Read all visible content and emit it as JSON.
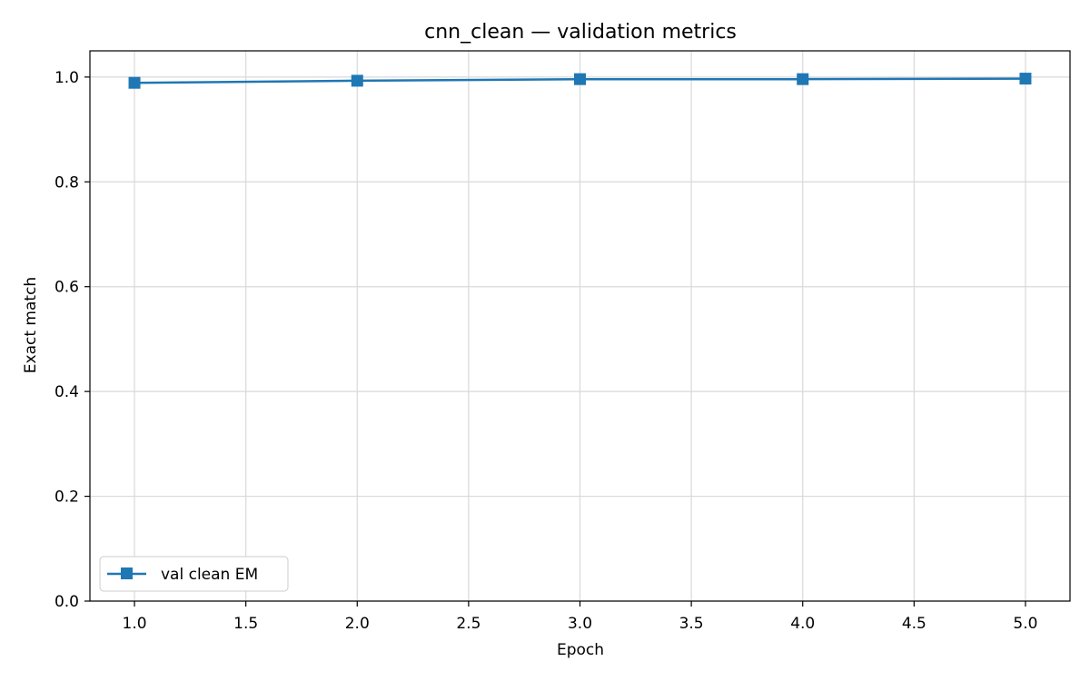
{
  "chart_data": {
    "type": "line",
    "title": "cnn_clean — validation metrics",
    "xlabel": "Epoch",
    "ylabel": "Exact match",
    "xlim": [
      0.8,
      5.2
    ],
    "ylim": [
      0.0,
      1.05
    ],
    "x_ticks": [
      1.0,
      1.5,
      2.0,
      2.5,
      3.0,
      3.5,
      4.0,
      4.5,
      5.0
    ],
    "x_tick_labels": [
      "1.0",
      "1.5",
      "2.0",
      "2.5",
      "3.0",
      "3.5",
      "4.0",
      "4.5",
      "5.0"
    ],
    "y_ticks": [
      0.0,
      0.2,
      0.4,
      0.6,
      0.8,
      1.0
    ],
    "y_tick_labels": [
      "0.0",
      "0.2",
      "0.4",
      "0.6",
      "0.8",
      "1.0"
    ],
    "grid": true,
    "legend_position": "lower-left",
    "series": [
      {
        "name": "val clean EM",
        "color": "#1f77b4",
        "marker": "square",
        "x": [
          1,
          2,
          3,
          4,
          5
        ],
        "y": [
          0.989,
          0.993,
          0.996,
          0.996,
          0.997
        ]
      }
    ]
  }
}
